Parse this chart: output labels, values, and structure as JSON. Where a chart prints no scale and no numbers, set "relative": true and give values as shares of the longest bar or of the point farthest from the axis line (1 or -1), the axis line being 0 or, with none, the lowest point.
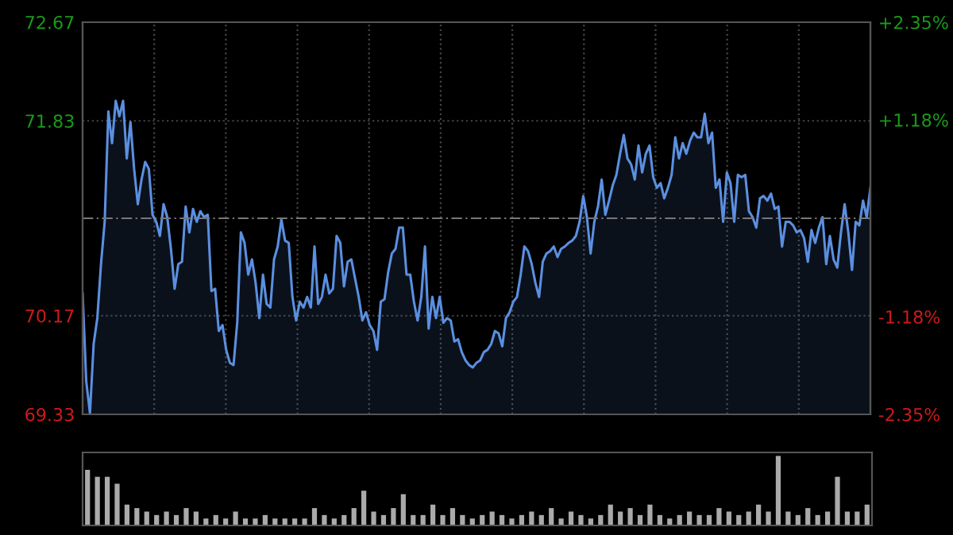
{
  "chart_data": [
    {
      "type": "area",
      "categories": [
        null,
        null,
        null,
        null,
        null,
        null,
        null,
        null,
        null,
        null,
        null,
        null,
        null,
        null,
        null,
        null,
        null,
        null,
        null,
        null,
        null,
        null,
        null,
        null,
        null,
        null,
        null,
        null,
        null,
        null,
        null,
        null,
        null,
        null,
        null,
        null,
        null,
        null,
        null,
        null,
        null,
        null,
        null,
        null,
        null,
        null,
        null,
        null,
        null,
        null,
        null,
        null,
        null,
        null,
        null,
        null,
        null,
        null,
        null,
        null,
        null,
        null,
        null,
        null,
        null,
        null,
        null,
        null,
        null,
        null,
        null,
        null,
        null,
        null,
        null,
        null,
        null,
        null,
        null,
        null,
        null,
        null,
        null,
        null,
        null,
        null,
        null,
        null,
        null,
        null,
        null,
        null,
        null,
        null,
        null,
        null,
        null,
        null,
        null,
        null,
        null,
        null,
        null,
        null,
        null,
        null,
        null,
        null,
        null,
        null,
        null,
        null,
        null,
        null,
        null,
        null,
        null,
        null,
        null,
        null,
        null,
        null,
        null,
        null,
        null,
        null,
        null,
        null,
        null,
        null,
        null,
        null,
        null,
        null,
        null,
        null,
        null,
        null,
        null,
        null,
        null,
        null,
        null,
        null,
        null,
        null,
        null,
        null,
        null,
        null,
        null,
        null,
        null,
        null,
        null,
        null,
        null,
        null,
        null,
        null,
        null,
        null,
        null,
        null,
        null,
        null,
        null,
        null,
        null,
        null,
        null,
        null,
        null,
        null,
        null,
        null,
        null,
        null,
        null,
        null,
        null,
        null,
        null,
        null,
        null,
        null,
        null,
        null,
        null,
        null,
        null,
        null,
        null,
        null,
        null,
        null,
        null,
        null,
        null,
        null,
        null,
        null,
        null,
        null,
        null,
        null,
        null,
        null,
        null,
        null,
        null,
        null,
        null,
        null,
        null
      ],
      "series": [
        {
          "color": "#5b8fe0",
          "values": [
            70.36,
            69.61,
            69.34,
            69.93,
            70.15,
            70.61,
            70.97,
            71.91,
            71.64,
            72.0,
            71.87,
            72.0,
            71.51,
            71.82,
            71.42,
            71.12,
            71.33,
            71.48,
            71.42,
            71.03,
            70.97,
            70.85,
            71.12,
            71.01,
            70.74,
            70.4,
            70.61,
            70.63,
            71.1,
            70.88,
            71.08,
            70.97,
            71.06,
            71.01,
            71.03,
            70.38,
            70.4,
            70.04,
            70.09,
            69.88,
            69.77,
            69.75,
            70.11,
            70.88,
            70.79,
            70.52,
            70.65,
            70.45,
            70.15,
            70.52,
            70.27,
            70.24,
            70.65,
            70.76,
            70.99,
            70.81,
            70.79,
            70.33,
            70.13,
            70.29,
            70.24,
            70.33,
            70.24,
            70.76,
            70.27,
            70.33,
            70.52,
            70.36,
            70.4,
            70.85,
            70.79,
            70.42,
            70.63,
            70.65,
            70.49,
            70.33,
            70.13,
            70.2,
            70.09,
            70.04,
            69.88,
            70.29,
            70.31,
            70.54,
            70.7,
            70.74,
            70.92,
            70.92,
            70.52,
            70.52,
            70.29,
            70.13,
            70.33,
            70.76,
            70.06,
            70.33,
            70.15,
            70.33,
            70.11,
            70.15,
            70.13,
            69.95,
            69.97,
            69.86,
            69.79,
            69.75,
            69.73,
            69.77,
            69.79,
            69.86,
            69.88,
            69.93,
            70.04,
            70.02,
            69.91,
            70.15,
            70.2,
            70.29,
            70.33,
            70.52,
            70.76,
            70.72,
            70.61,
            70.45,
            70.33,
            70.63,
            70.7,
            70.72,
            70.76,
            70.67,
            70.74,
            70.76,
            70.79,
            70.81,
            70.85,
            70.97,
            71.19,
            71.01,
            70.7,
            70.97,
            71.1,
            71.33,
            71.03,
            71.15,
            71.28,
            71.37,
            71.55,
            71.71,
            71.51,
            71.46,
            71.33,
            71.62,
            71.39,
            71.55,
            71.62,
            71.35,
            71.26,
            71.3,
            71.17,
            71.26,
            71.37,
            71.69,
            71.51,
            71.64,
            71.55,
            71.66,
            71.73,
            71.69,
            71.69,
            71.89,
            71.64,
            71.73,
            71.26,
            71.33,
            70.97,
            71.39,
            71.3,
            70.97,
            71.37,
            71.35,
            71.37,
            71.06,
            71.01,
            70.92,
            71.17,
            71.19,
            71.15,
            71.21,
            71.08,
            71.1,
            70.76,
            70.97,
            70.97,
            70.94,
            70.88,
            70.9,
            70.83,
            70.63,
            70.9,
            70.79,
            70.92,
            71.01,
            70.61,
            70.85,
            70.65,
            70.58,
            70.88,
            71.12,
            70.88,
            70.56,
            70.97,
            70.94,
            71.15,
            71.01,
            71.26
          ]
        }
      ],
      "ylim": [
        69.33,
        72.67
      ],
      "yticks": [
        69.33,
        70.17,
        71.83,
        72.67
      ],
      "y2lim": [
        -2.35,
        2.35
      ],
      "y2ticks": [
        {
          "value": -2.35,
          "label": "-2.35%"
        },
        {
          "value": -1.18,
          "label": "-1.18%"
        },
        {
          "value": 1.18,
          "label": "+1.18%"
        },
        {
          "value": 2.35,
          "label": "+2.35%"
        }
      ],
      "ref_lines": [
        {
          "axis": "y",
          "value": 71.0,
          "color": "#777777",
          "line_style": "dashed"
        }
      ],
      "grid": "y",
      "tick_labels": "y"
    },
    {
      "type": "bar",
      "relative": true,
      "color": "#aaaaaa",
      "categories": [
        null,
        null,
        null,
        null,
        null,
        null,
        null,
        null,
        null,
        null,
        null,
        null,
        null,
        null,
        null,
        null,
        null,
        null,
        null,
        null,
        null,
        null,
        null,
        null,
        null,
        null,
        null,
        null,
        null,
        null,
        null,
        null,
        null,
        null,
        null,
        null,
        null,
        null,
        null,
        null,
        null,
        null,
        null,
        null,
        null,
        null,
        null,
        null,
        null,
        null,
        null,
        null,
        null,
        null,
        null,
        null,
        null,
        null,
        null,
        null,
        null,
        null,
        null,
        null,
        null,
        null,
        null,
        null,
        null,
        null,
        null,
        null,
        null,
        null,
        null,
        null,
        null,
        null,
        null,
        null
      ],
      "values": [
        0.8,
        0.7,
        0.7,
        0.6,
        0.3,
        0.25,
        0.2,
        0.15,
        0.2,
        0.15,
        0.25,
        0.2,
        0.1,
        0.15,
        0.1,
        0.2,
        0.1,
        0.1,
        0.15,
        0.1,
        0.1,
        0.1,
        0.1,
        0.25,
        0.15,
        0.1,
        0.15,
        0.25,
        0.5,
        0.2,
        0.15,
        0.25,
        0.45,
        0.15,
        0.15,
        0.3,
        0.15,
        0.25,
        0.15,
        0.1,
        0.15,
        0.2,
        0.15,
        0.1,
        0.15,
        0.2,
        0.15,
        0.25,
        0.1,
        0.2,
        0.15,
        0.1,
        0.15,
        0.3,
        0.2,
        0.25,
        0.15,
        0.3,
        0.15,
        0.1,
        0.15,
        0.2,
        0.15,
        0.15,
        0.25,
        0.2,
        0.15,
        0.2,
        0.3,
        0.2,
        1,
        0.2,
        0.15,
        0.25,
        0.15,
        0.2,
        0.7,
        0.2,
        0.2,
        0.3
      ]
    }
  ]
}
